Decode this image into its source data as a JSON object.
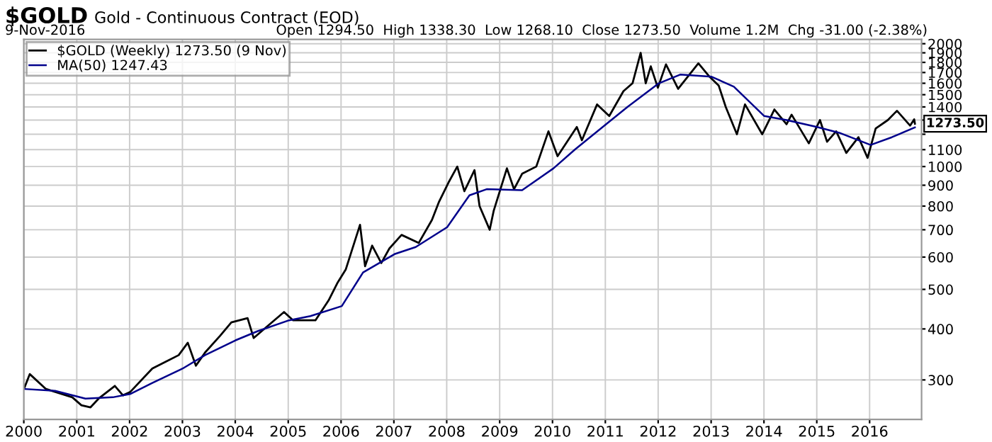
{
  "chart_data": {
    "type": "line",
    "title": "$GOLD",
    "subtitle": "Gold - Continuous Contract (EOD)",
    "annotations": [
      "9-Nov-2016",
      "Open 1294.50  High 1338.30  Low 1268.10  Close 1273.50  Volume 1.2M  Chg -31.00 (-2.38%)",
      {
        "text": "1273.50",
        "x": "2016-11-09",
        "y": 1273.5
      }
    ],
    "log": "y",
    "grid": true,
    "legend": "top left",
    "line_style": "solid",
    "marker": "none",
    "tick_labels": "xy",
    "xlim": [
      "2000-01-01",
      "2016-12-25"
    ],
    "xticks": [
      {
        "value": "2000-01-01",
        "label": "2000"
      },
      {
        "value": "2001-01-01",
        "label": "2001"
      },
      {
        "value": "2002-01-01",
        "label": "2002"
      },
      {
        "value": "2003-01-01",
        "label": "2003"
      },
      {
        "value": "2004-01-01",
        "label": "2004"
      },
      {
        "value": "2005-01-01",
        "label": "2005"
      },
      {
        "value": "2006-01-01",
        "label": "2006"
      },
      {
        "value": "2007-01-01",
        "label": "2007"
      },
      {
        "value": "2008-01-01",
        "label": "2008"
      },
      {
        "value": "2009-01-01",
        "label": "2009"
      },
      {
        "value": "2010-01-01",
        "label": "2010"
      },
      {
        "value": "2011-01-01",
        "label": "2011"
      },
      {
        "value": "2012-01-01",
        "label": "2012"
      },
      {
        "value": "2013-01-01",
        "label": "2013"
      },
      {
        "value": "2014-01-01",
        "label": "2014"
      },
      {
        "value": "2015-01-01",
        "label": "2015"
      },
      {
        "value": "2016-01-01",
        "label": "2016"
      }
    ],
    "ylim": [
      240,
      2050
    ],
    "yticks": [
      300,
      400,
      500,
      600,
      700,
      800,
      900,
      1000,
      1100,
      {
        "value": 1200,
        "label": null
      },
      {
        "value": 1300,
        "label": null
      },
      1400,
      1500,
      1600,
      1700,
      1800,
      1900,
      2000
    ],
    "series": [
      {
        "name": "$GOLD (Weekly) 1273.50 (9 Nov)",
        "color": "#000000",
        "x": [
          "2000-01-07",
          "2000-02-11",
          "2000-06-02",
          "2000-12-01",
          "2001-02-02",
          "2001-04-06",
          "2001-06-01",
          "2001-09-21",
          "2001-11-16",
          "2002-01-04",
          "2002-06-07",
          "2002-12-06",
          "2003-02-07",
          "2003-04-04",
          "2003-06-06",
          "2003-09-19",
          "2003-12-05",
          "2004-03-26",
          "2004-05-07",
          "2004-08-06",
          "2004-12-03",
          "2005-02-04",
          "2005-05-06",
          "2005-07-08",
          "2005-10-07",
          "2005-12-09",
          "2006-02-03",
          "2006-05-12",
          "2006-06-16",
          "2006-08-04",
          "2006-10-06",
          "2006-12-01",
          "2007-02-23",
          "2007-06-22",
          "2007-09-21",
          "2007-11-09",
          "2008-01-18",
          "2008-03-14",
          "2008-05-02",
          "2008-07-11",
          "2008-08-15",
          "2008-10-24",
          "2008-11-21",
          "2009-02-20",
          "2009-04-10",
          "2009-06-05",
          "2009-09-11",
          "2009-12-04",
          "2010-02-05",
          "2010-06-18",
          "2010-07-23",
          "2010-11-05",
          "2011-01-28",
          "2011-05-06",
          "2011-07-08",
          "2011-09-02",
          "2011-10-07",
          "2011-11-11",
          "2011-12-30",
          "2012-02-24",
          "2012-05-18",
          "2012-10-05",
          "2012-12-21",
          "2013-02-22",
          "2013-04-12",
          "2013-06-28",
          "2013-08-23",
          "2013-12-20",
          "2014-03-14",
          "2014-06-06",
          "2014-07-11",
          "2014-11-07",
          "2015-01-23",
          "2015-03-13",
          "2015-05-15",
          "2015-07-24",
          "2015-10-16",
          "2015-12-18",
          "2016-02-12",
          "2016-05-06",
          "2016-07-08",
          "2016-10-07",
          "2016-11-04",
          "2016-11-09"
        ],
        "values": [
          288,
          310,
          285,
          272,
          260,
          257,
          270,
          290,
          275,
          280,
          320,
          345,
          370,
          325,
          350,
          385,
          415,
          425,
          380,
          405,
          440,
          420,
          420,
          420,
          470,
          520,
          560,
          720,
          570,
          640,
          580,
          630,
          680,
          650,
          740,
          820,
          920,
          1000,
          870,
          980,
          800,
          700,
          780,
          990,
          880,
          960,
          1000,
          1220,
          1060,
          1250,
          1160,
          1420,
          1330,
          1530,
          1600,
          1900,
          1600,
          1760,
          1560,
          1780,
          1550,
          1790,
          1660,
          1580,
          1400,
          1200,
          1420,
          1200,
          1380,
          1270,
          1340,
          1140,
          1300,
          1150,
          1220,
          1080,
          1180,
          1050,
          1240,
          1300,
          1370,
          1260,
          1305,
          1273.5
        ]
      },
      {
        "name": "MA(50) 1247.43",
        "color": "#00008b",
        "x": [
          "2000-01-07",
          "2000-08-04",
          "2001-03-02",
          "2001-09-07",
          "2002-01-04",
          "2002-06-07",
          "2003-01-03",
          "2003-06-06",
          "2004-01-02",
          "2004-06-04",
          "2005-01-07",
          "2005-06-03",
          "2006-01-06",
          "2006-06-02",
          "2007-01-05",
          "2007-06-01",
          "2008-01-04",
          "2008-06-06",
          "2008-10-03",
          "2009-06-05",
          "2010-01-08",
          "2010-06-04",
          "2011-01-07",
          "2011-06-03",
          "2012-01-06",
          "2012-06-01",
          "2013-01-04",
          "2013-06-07",
          "2014-01-03",
          "2014-06-06",
          "2015-01-02",
          "2015-06-05",
          "2016-01-08",
          "2016-06-03",
          "2016-11-09"
        ],
        "values": [
          285,
          282,
          270,
          272,
          277,
          295,
          320,
          345,
          375,
          395,
          420,
          430,
          455,
          550,
          610,
          635,
          710,
          850,
          880,
          875,
          990,
          1100,
          1270,
          1400,
          1600,
          1680,
          1660,
          1570,
          1330,
          1300,
          1250,
          1210,
          1130,
          1180,
          1247.43
        ]
      }
    ]
  }
}
